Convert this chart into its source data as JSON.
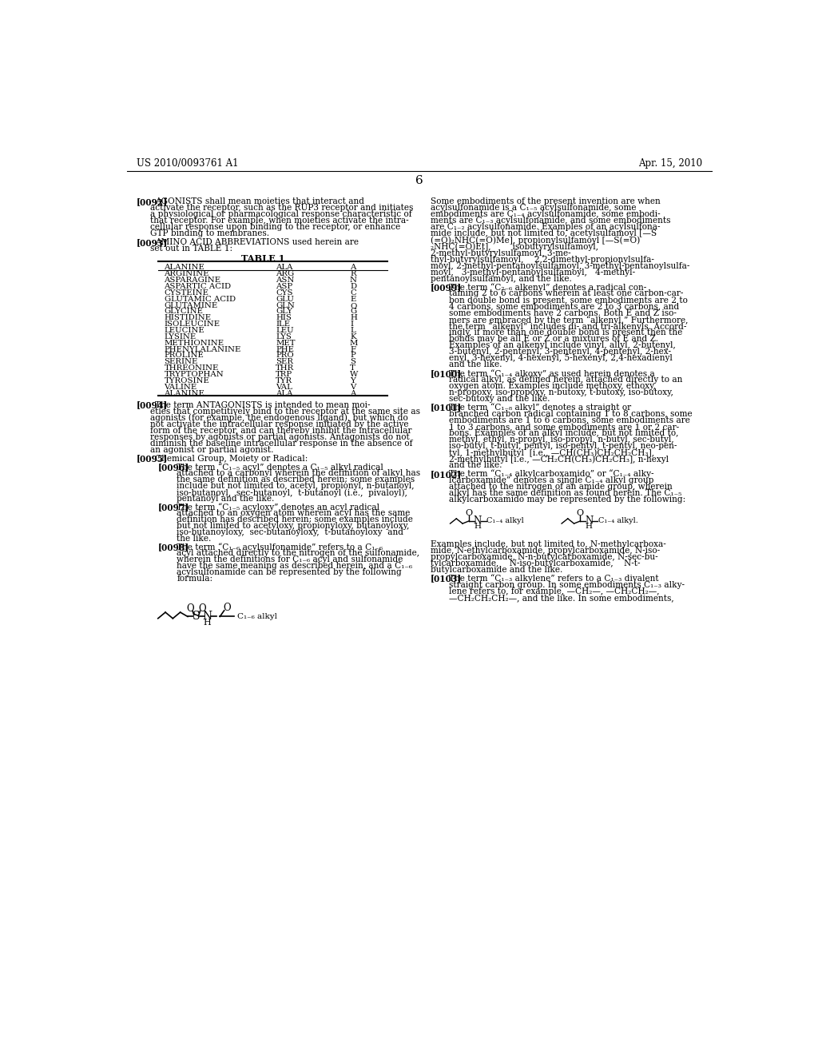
{
  "background_color": "#ffffff",
  "header_left": "US 2010/0093761 A1",
  "header_right": "Apr. 15, 2010",
  "page_number": "6",
  "table": {
    "title": "TABLE 1",
    "rows": [
      [
        "ALANINE",
        "ALA",
        "A"
      ],
      [
        "ARGININE",
        "ARG",
        "R"
      ],
      [
        "ASPARAGINE",
        "ASN",
        "N"
      ],
      [
        "ASPARTIC ACID",
        "ASP",
        "D"
      ],
      [
        "CYSTEINE",
        "CYS",
        "C"
      ],
      [
        "GLUTAMIC ACID",
        "GLU",
        "E"
      ],
      [
        "GLUTAMINE",
        "GLN",
        "Q"
      ],
      [
        "GLYCINE",
        "GLY",
        "G"
      ],
      [
        "HISTIDINE",
        "HIS",
        "H"
      ],
      [
        "ISOLEUCINE",
        "ILE",
        "I"
      ],
      [
        "LEUCINE",
        "LEU",
        "L"
      ],
      [
        "LYSINE",
        "LYS",
        "K"
      ],
      [
        "METHIONINE",
        "MET",
        "M"
      ],
      [
        "PHENYLALANINE",
        "PHE",
        "F"
      ],
      [
        "PROLINE",
        "PRO",
        "P"
      ],
      [
        "SERINE",
        "SER",
        "S"
      ],
      [
        "THREONINE",
        "THR",
        "T"
      ],
      [
        "TRYPTOPHAN",
        "TRP",
        "W"
      ],
      [
        "TYROSINE",
        "TYR",
        "Y"
      ],
      [
        "VALINE",
        "VAL",
        "V"
      ],
      [
        "ALANINE",
        "ALA",
        "A"
      ]
    ]
  }
}
